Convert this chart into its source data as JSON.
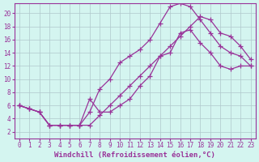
{
  "xlabel": "Windchill (Refroidissement éolien,°C)",
  "bg_color": "#d4f5f0",
  "line_color": "#993399",
  "grid_color": "#b0c8cc",
  "xlim": [
    -0.5,
    23.5
  ],
  "ylim": [
    1,
    21.5
  ],
  "yticks": [
    2,
    4,
    6,
    8,
    10,
    12,
    14,
    16,
    18,
    20
  ],
  "xticks": [
    0,
    1,
    2,
    3,
    4,
    5,
    6,
    7,
    8,
    9,
    10,
    11,
    12,
    13,
    14,
    15,
    16,
    17,
    18,
    19,
    20,
    21,
    22,
    23
  ],
  "line1_x": [
    0,
    1,
    2,
    3,
    4,
    5,
    6,
    7,
    8,
    9,
    10,
    11,
    12,
    13,
    14,
    15,
    16,
    17,
    18,
    19,
    20,
    21,
    22,
    23
  ],
  "line1_y": [
    6.0,
    5.5,
    5.0,
    3.0,
    3.0,
    3.0,
    3.0,
    3.0,
    4.5,
    6.0,
    7.5,
    9.0,
    10.5,
    12.0,
    13.5,
    15.0,
    16.5,
    18.0,
    19.5,
    19.0,
    17.0,
    16.5,
    15.0,
    13.0
  ],
  "line2_x": [
    0,
    1,
    2,
    3,
    4,
    5,
    6,
    7,
    8,
    9,
    10,
    11,
    12,
    13,
    14,
    15,
    16,
    17,
    18,
    19,
    20,
    21,
    22,
    23
  ],
  "line2_y": [
    6.0,
    5.5,
    5.0,
    3.0,
    3.0,
    3.0,
    3.0,
    5.0,
    8.5,
    10.0,
    12.5,
    13.5,
    14.5,
    16.0,
    18.5,
    21.0,
    21.5,
    21.0,
    19.0,
    17.0,
    15.0,
    14.0,
    13.5,
    12.0
  ],
  "line3_x": [
    0,
    1,
    2,
    3,
    4,
    5,
    6,
    7,
    8,
    9,
    10,
    11,
    12,
    13,
    14,
    15,
    16,
    17,
    18,
    19,
    20,
    21,
    22,
    23
  ],
  "line3_y": [
    6.0,
    5.5,
    5.0,
    3.0,
    3.0,
    3.0,
    3.0,
    7.0,
    5.0,
    5.0,
    6.0,
    7.0,
    9.0,
    10.5,
    13.5,
    14.0,
    17.0,
    17.5,
    15.5,
    14.0,
    12.0,
    11.5,
    12.0,
    12.0
  ],
  "marker": "+",
  "markersize": 4,
  "linewidth": 0.9,
  "xlabel_fontsize": 6.5,
  "tick_fontsize": 5.5
}
